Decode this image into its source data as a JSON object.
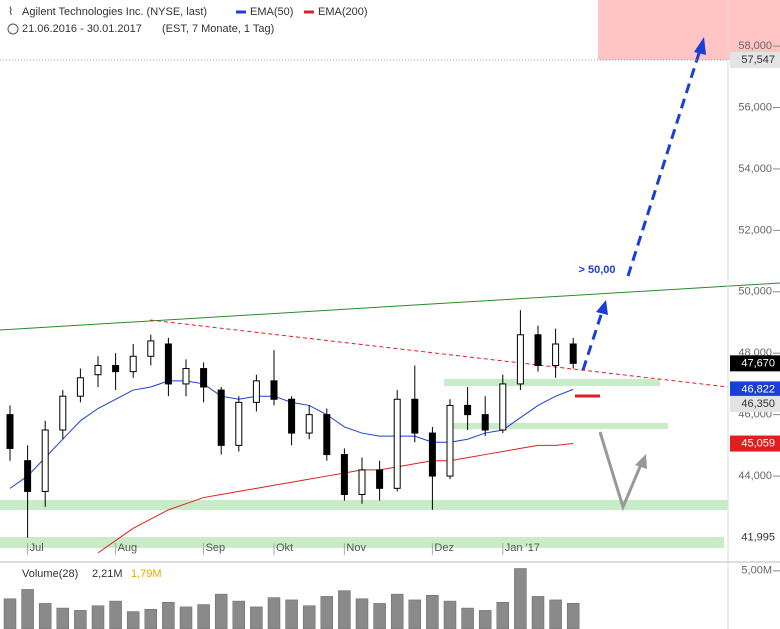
{
  "chart_data": {
    "type": "candlestick",
    "title": "Agilent Technologies Inc. (NYSE, last)",
    "date_range": "21.06.2016 - 30.01.2017",
    "period": "(EST, 7 Monate, 1 Tag)",
    "categories": [
      null,
      "Jul",
      null,
      null,
      null,
      null,
      "Aug",
      null,
      null,
      null,
      null,
      "Sep",
      null,
      null,
      null,
      "Okt",
      null,
      null,
      null,
      "Nov",
      null,
      null,
      null,
      null,
      "Dez",
      null,
      null,
      null,
      "Jan '17",
      null,
      null,
      null,
      null
    ],
    "open": [
      46.0,
      44.5,
      43.5,
      45.5,
      46.6,
      47.3,
      47.6,
      47.4,
      47.9,
      48.3,
      47.0,
      47.5,
      46.8,
      45.0,
      46.4,
      47.1,
      46.5,
      45.4,
      46.0,
      44.7,
      43.4,
      44.2,
      43.6,
      46.5,
      45.4,
      44.0,
      46.3,
      46.0,
      45.5,
      47.0,
      48.6,
      47.6,
      48.3
    ],
    "high": [
      46.3,
      45.0,
      45.8,
      46.8,
      47.5,
      47.9,
      48.0,
      48.3,
      48.6,
      48.5,
      47.8,
      47.7,
      46.9,
      46.6,
      47.3,
      48.1,
      46.6,
      46.3,
      46.2,
      44.9,
      44.6,
      44.5,
      46.8,
      47.6,
      45.6,
      46.5,
      46.9,
      46.6,
      47.3,
      49.4,
      48.9,
      48.8,
      48.5
    ],
    "low": [
      44.5,
      41.995,
      43.0,
      45.2,
      46.4,
      46.9,
      46.8,
      47.2,
      47.6,
      46.6,
      46.6,
      46.4,
      44.7,
      44.8,
      46.1,
      46.3,
      45.0,
      45.2,
      44.5,
      43.2,
      43.1,
      43.2,
      43.5,
      45.1,
      42.9,
      43.9,
      45.5,
      45.3,
      45.4,
      46.8,
      47.4,
      47.2,
      47.5
    ],
    "close": [
      44.9,
      43.5,
      45.5,
      46.6,
      47.2,
      47.6,
      47.4,
      47.9,
      48.4,
      47.0,
      47.5,
      46.9,
      45.0,
      46.4,
      47.1,
      46.5,
      45.4,
      46.0,
      44.7,
      43.4,
      44.2,
      43.6,
      46.5,
      45.4,
      44.0,
      46.3,
      46.0,
      45.5,
      47.0,
      48.6,
      47.6,
      48.3,
      47.67
    ],
    "series": [
      {
        "name": "EMA(50)",
        "color": "#1a3fd6",
        "values": [
          43.6,
          44.0,
          44.6,
          45.2,
          45.8,
          46.2,
          46.5,
          46.8,
          46.9,
          47.1,
          47.1,
          47.0,
          46.6,
          46.5,
          46.6,
          46.6,
          46.4,
          46.3,
          46.0,
          45.6,
          45.4,
          45.3,
          45.3,
          45.3,
          45.1,
          45.1,
          45.2,
          45.4,
          45.5,
          45.9,
          46.3,
          46.6,
          46.822
        ]
      },
      {
        "name": "EMA(200)",
        "color": "#e02020",
        "values": [
          null,
          null,
          null,
          null,
          null,
          41.5,
          41.9,
          42.3,
          42.6,
          42.9,
          43.1,
          43.3,
          43.4,
          43.5,
          43.6,
          43.7,
          43.8,
          43.9,
          44.0,
          44.1,
          44.2,
          44.2,
          44.3,
          44.4,
          44.5,
          44.5,
          44.6,
          44.7,
          44.8,
          44.9,
          45.0,
          45.0,
          45.059
        ]
      }
    ],
    "ylim": [
      41.43,
      59.5
    ],
    "yticks": [
      {
        "value": 44,
        "label": "44,000"
      },
      {
        "value": 46,
        "label": "46,000"
      },
      {
        "value": 48,
        "label": "48,000"
      },
      {
        "value": 50,
        "label": "50,000"
      },
      {
        "value": 52,
        "label": "52,000"
      },
      {
        "value": 54,
        "label": "54,000"
      },
      {
        "value": 56,
        "label": "56,000"
      },
      {
        "value": 58,
        "label": "58,000"
      }
    ],
    "price_tags": [
      {
        "value": 57.547,
        "label": "57,547",
        "color": "#e4e4e4"
      },
      {
        "value": 47.67,
        "label": "47,670",
        "color": "#000000"
      },
      {
        "value": 46.822,
        "label": "46,822",
        "color": "#1a3fd6"
      },
      {
        "value": 46.35,
        "label": "46,350",
        "color": "#e4e4e4"
      },
      {
        "value": 45.059,
        "label": "45,059",
        "color": "#e02020"
      },
      {
        "value": 41.995,
        "label": "41,995",
        "color": "#ffffff"
      }
    ],
    "annotation": "> 50,00",
    "volume": {
      "name": "Volume(28)",
      "readouts": [
        "2,21M",
        "1,79M"
      ],
      "values": [
        2.6,
        3.4,
        2.2,
        1.8,
        1.6,
        2.0,
        2.4,
        1.5,
        1.7,
        2.3,
        1.9,
        2.1,
        3.0,
        2.4,
        1.9,
        2.7,
        2.5,
        2.0,
        2.8,
        3.3,
        2.6,
        2.2,
        3.0,
        2.5,
        2.9,
        2.4,
        1.8,
        1.6,
        2.3,
        5.2,
        2.8,
        2.5,
        2.21
      ],
      "ylim": [
        0,
        5.5
      ],
      "yticks": [
        {
          "value": 5,
          "label": "5,00M"
        }
      ]
    }
  }
}
